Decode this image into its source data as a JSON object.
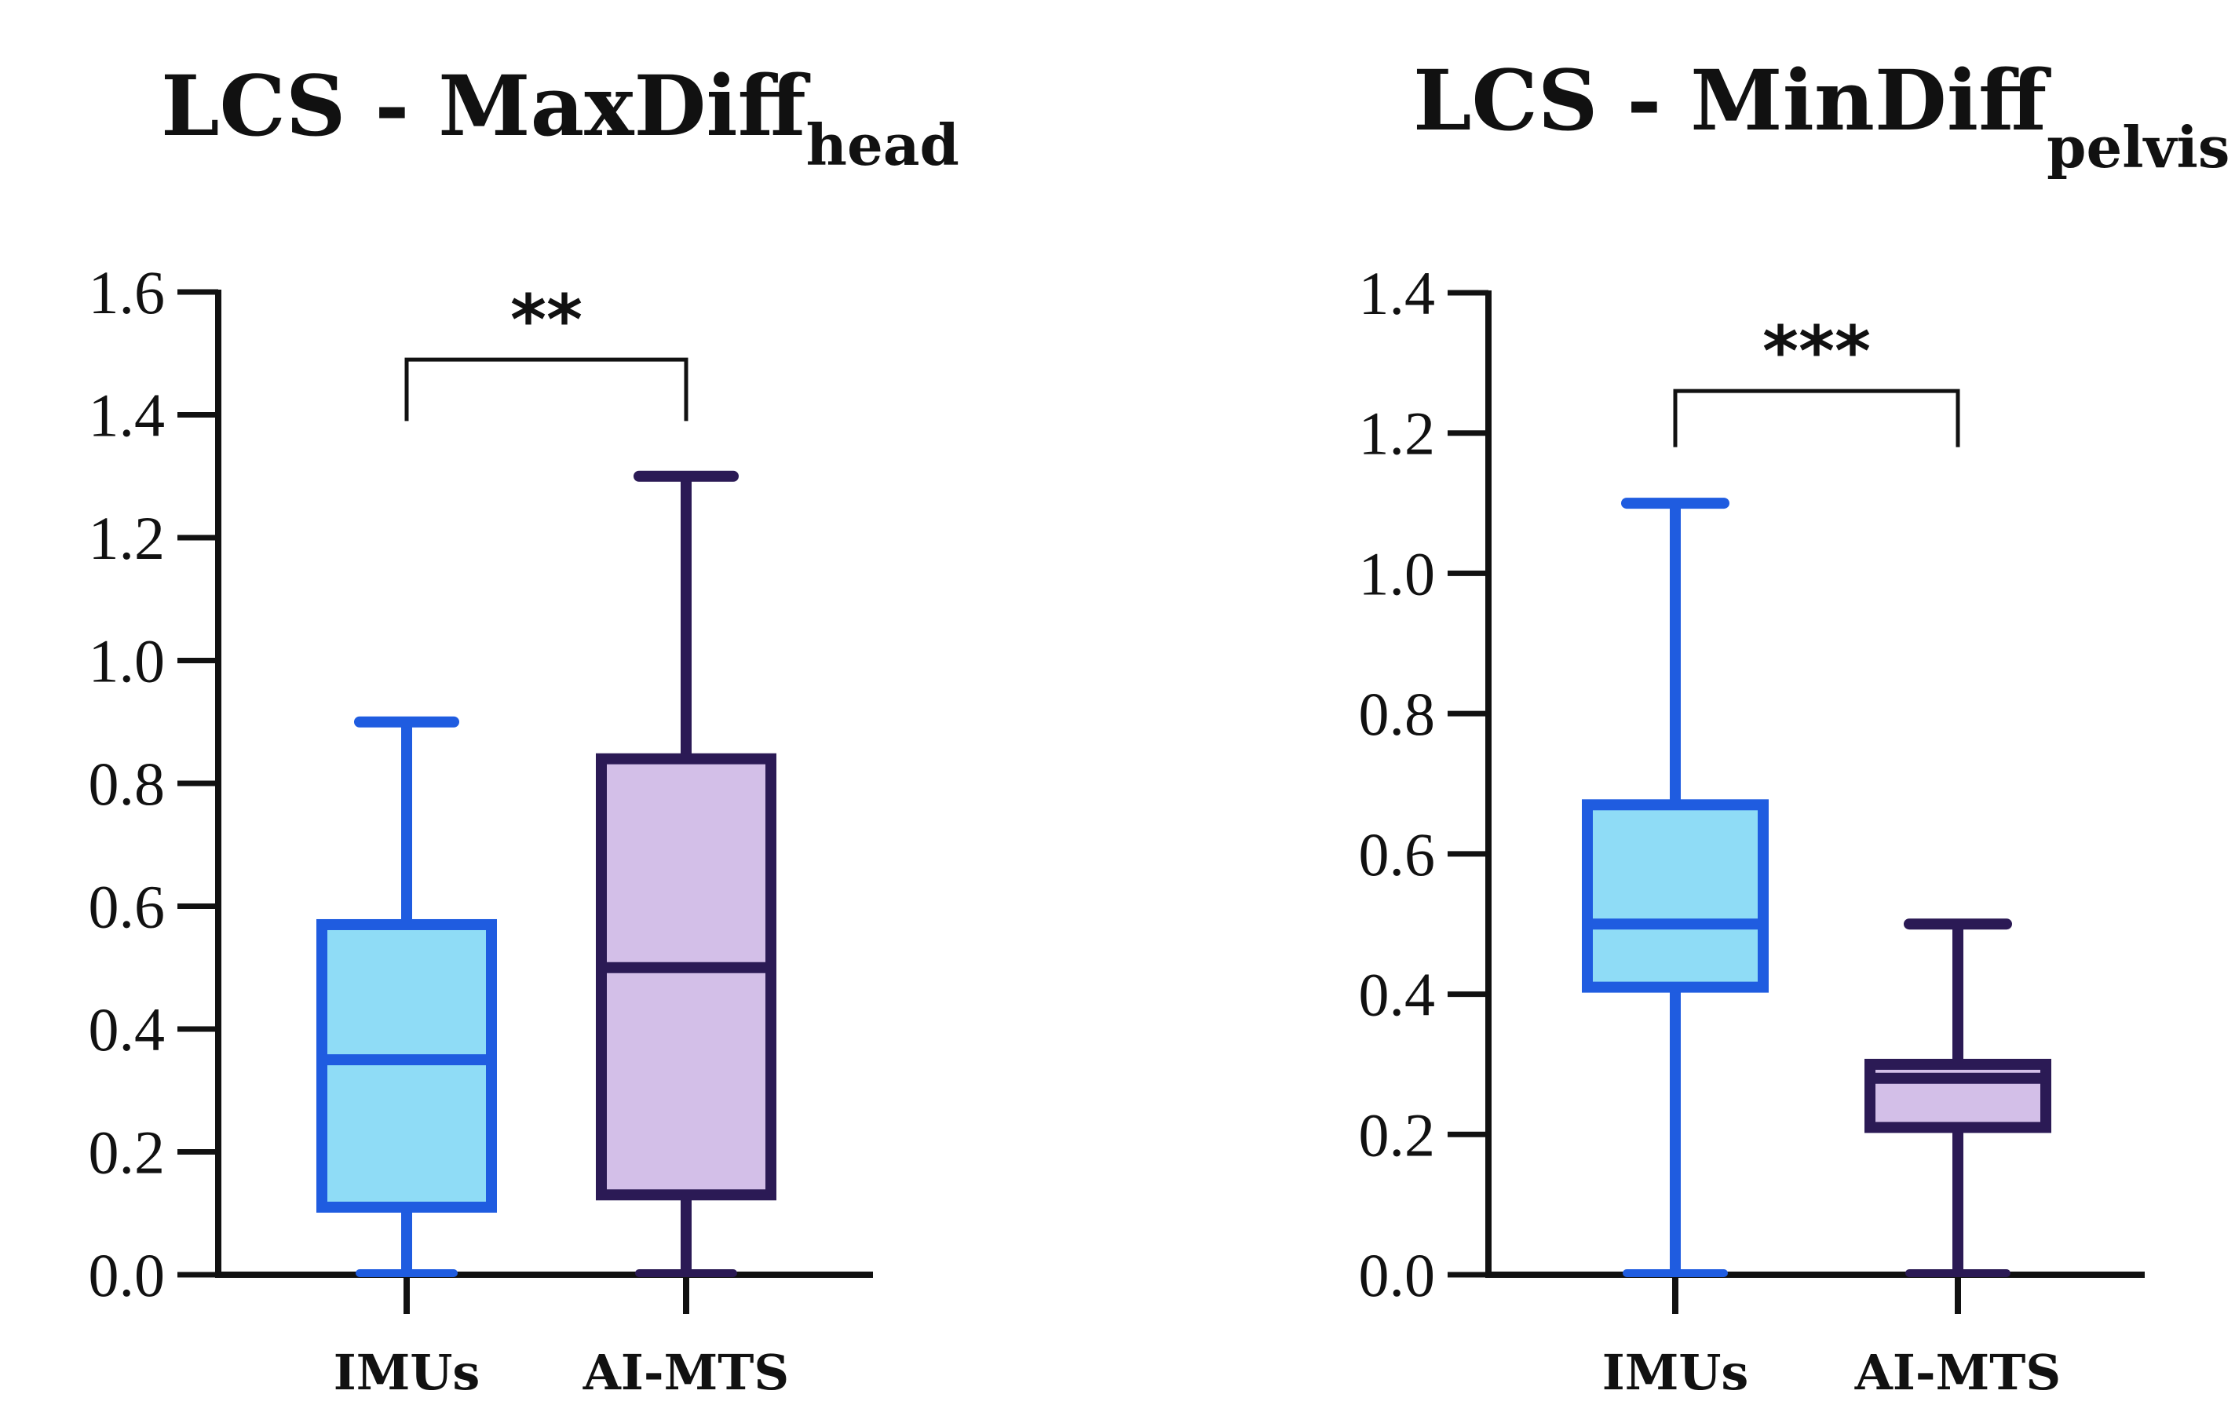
{
  "chart_data": [
    {
      "type": "box",
      "title": "LCS - MaxDiff",
      "title_subscript": "head",
      "xlabel": "",
      "ylabel": "",
      "ylim": [
        0,
        1.6
      ],
      "yticks": [
        0.0,
        0.2,
        0.4,
        0.6,
        0.8,
        1.0,
        1.2,
        1.4,
        1.6
      ],
      "ytick_labels": [
        "0.0",
        "0.2",
        "0.4",
        "0.6",
        "0.8",
        "1.0",
        "1.2",
        "1.4",
        "1.6"
      ],
      "categories": [
        "IMUs",
        "AI-MTS"
      ],
      "series": [
        {
          "name": "IMUs",
          "min": 0.0,
          "q1": 0.11,
          "median": 0.35,
          "q3": 0.57,
          "max": 0.9,
          "stroke": "#1f5ce0",
          "fill": "#8fdcf6"
        },
        {
          "name": "AI-MTS",
          "min": 0.0,
          "q1": 0.13,
          "median": 0.5,
          "q3": 0.84,
          "max": 1.3,
          "stroke": "#2b1a55",
          "fill": "#d3bfe8"
        }
      ],
      "significance": {
        "label": "**",
        "bar_value": 1.49,
        "left_end": 1.39,
        "right_end": 1.39,
        "between": [
          "IMUs",
          "AI-MTS"
        ]
      },
      "grid": false
    },
    {
      "type": "box",
      "title": "LCS - MinDiff",
      "title_subscript": "pelvis",
      "xlabel": "",
      "ylabel": "",
      "ylim": [
        0,
        1.4
      ],
      "yticks": [
        0.0,
        0.2,
        0.4,
        0.6,
        0.8,
        1.0,
        1.2,
        1.4
      ],
      "ytick_labels": [
        "0.0",
        "0.2",
        "0.4",
        "0.6",
        "0.8",
        "1.0",
        "1.2",
        "1.4"
      ],
      "categories": [
        "IMUs",
        "AI-MTS"
      ],
      "series": [
        {
          "name": "IMUs",
          "min": 0.0,
          "q1": 0.41,
          "median": 0.5,
          "q3": 0.67,
          "max": 1.1,
          "stroke": "#1f5ce0",
          "fill": "#8fdcf6"
        },
        {
          "name": "AI-MTS",
          "min": 0.0,
          "q1": 0.21,
          "median": 0.28,
          "q3": 0.3,
          "max": 0.5,
          "stroke": "#2b1a55",
          "fill": "#d3bfe8"
        }
      ],
      "significance": {
        "label": "***",
        "bar_value": 1.26,
        "left_end": 1.18,
        "right_end": 1.18,
        "between": [
          "IMUs",
          "AI-MTS"
        ]
      },
      "grid": false
    }
  ]
}
